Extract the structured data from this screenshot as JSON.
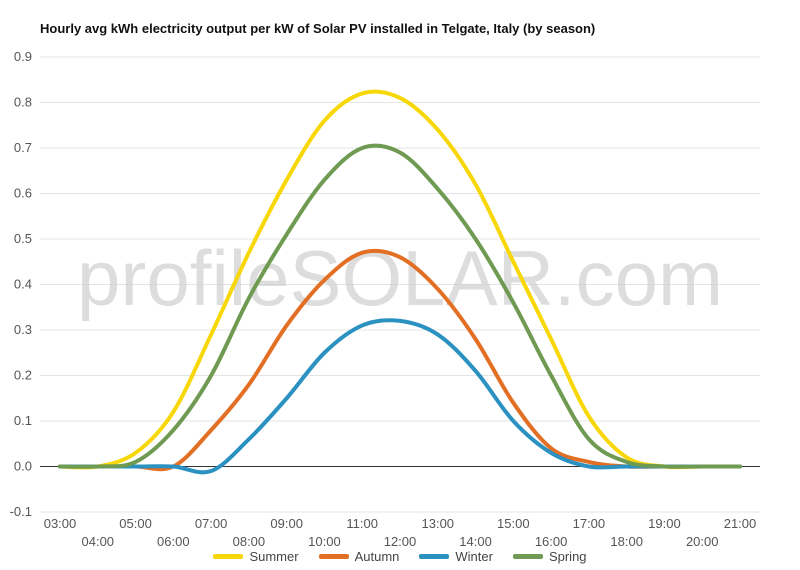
{
  "chart_data": {
    "type": "line",
    "title": "Hourly avg kWh electricity output per kW of Solar PV installed in Telgate, Italy (by season)",
    "watermark": "profileSOLAR.com",
    "x": [
      "03:00",
      "04:00",
      "05:00",
      "06:00",
      "07:00",
      "08:00",
      "09:00",
      "10:00",
      "11:00",
      "12:00",
      "13:00",
      "14:00",
      "15:00",
      "16:00",
      "17:00",
      "18:00",
      "19:00",
      "20:00",
      "21:00"
    ],
    "ylim": [
      -0.1,
      0.9
    ],
    "yticks": [
      -0.1,
      0.0,
      0.1,
      0.2,
      0.3,
      0.4,
      0.5,
      0.6,
      0.7,
      0.8,
      0.9
    ],
    "grid": true,
    "legend_position": "bottom",
    "series": [
      {
        "name": "Summer",
        "color": "#f7d708",
        "values": [
          0.0,
          0.0,
          0.03,
          0.12,
          0.29,
          0.47,
          0.63,
          0.76,
          0.82,
          0.81,
          0.74,
          0.62,
          0.45,
          0.28,
          0.11,
          0.02,
          0.0,
          0.0,
          0.0
        ]
      },
      {
        "name": "Autumn",
        "color": "#e36f24",
        "values": [
          0.0,
          0.0,
          0.0,
          0.0,
          0.08,
          0.18,
          0.31,
          0.41,
          0.47,
          0.46,
          0.39,
          0.28,
          0.14,
          0.04,
          0.01,
          0.0,
          0.0,
          0.0,
          0.0
        ]
      },
      {
        "name": "Winter",
        "color": "#2a91c1",
        "values": [
          0.0,
          0.0,
          0.0,
          0.0,
          -0.01,
          0.06,
          0.15,
          0.25,
          0.31,
          0.32,
          0.29,
          0.21,
          0.1,
          0.03,
          0.0,
          0.0,
          0.0,
          0.0,
          0.0
        ]
      },
      {
        "name": "Spring",
        "color": "#6f9a51",
        "values": [
          0.0,
          0.0,
          0.01,
          0.08,
          0.2,
          0.37,
          0.51,
          0.63,
          0.7,
          0.69,
          0.61,
          0.5,
          0.36,
          0.2,
          0.06,
          0.01,
          0.0,
          0.0,
          0.0
        ]
      }
    ]
  }
}
